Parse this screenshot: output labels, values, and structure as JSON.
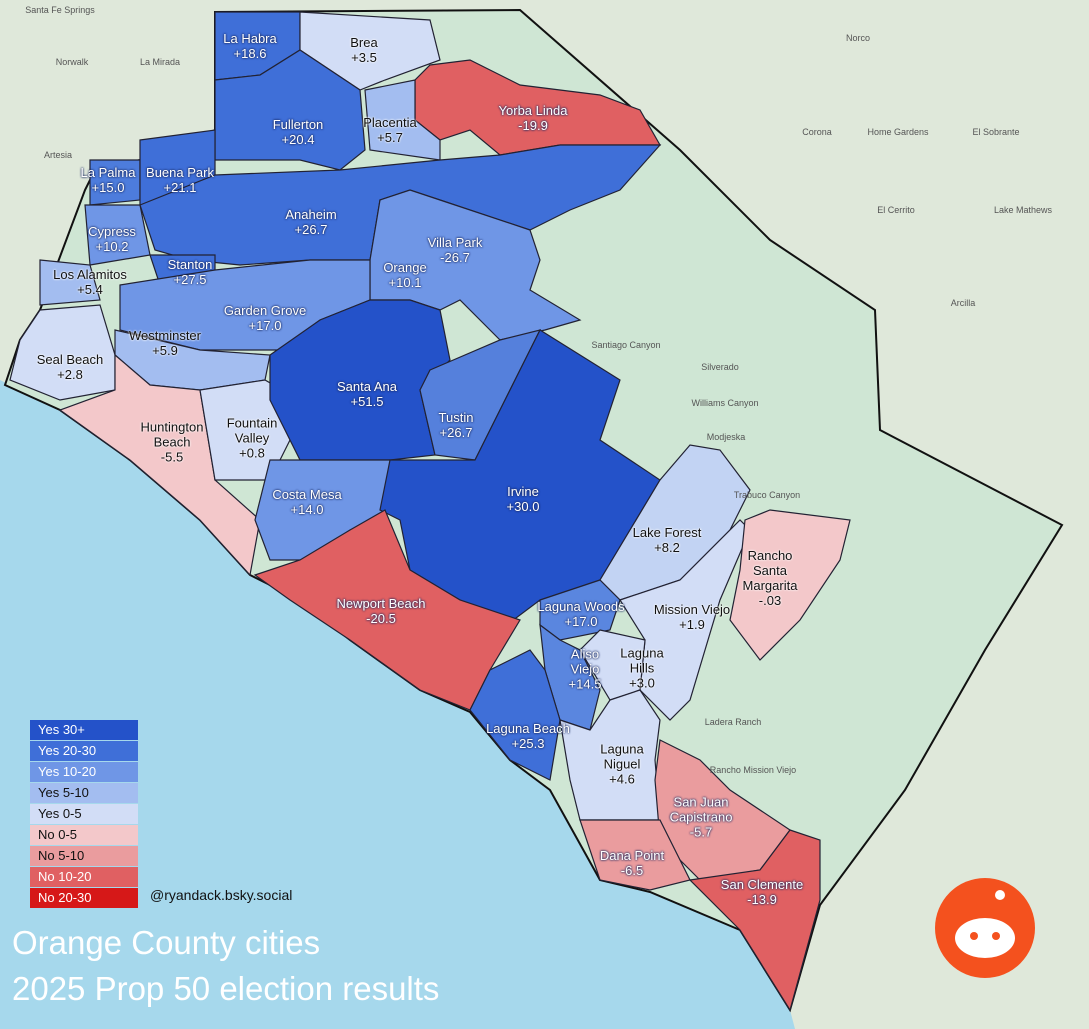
{
  "header": {
    "title_lines": [
      "Orange County cities",
      "2025 Prop 50 election results"
    ],
    "credit": "@ryandack.bsky.social"
  },
  "legend": [
    {
      "label": "Yes 30+",
      "color": "#2452c9"
    },
    {
      "label": "Yes 20-30",
      "color": "#3f6fd8"
    },
    {
      "label": "Yes 10-20",
      "color": "#6f96e6"
    },
    {
      "label": "Yes 5-10",
      "color": "#a3bdf0"
    },
    {
      "label": "Yes 0-5",
      "color": "#d2ddf6"
    },
    {
      "label": "No 0-5",
      "color": "#f3c8ca"
    },
    {
      "label": "No 5-10",
      "color": "#ea9c9e"
    },
    {
      "label": "No 10-20",
      "color": "#e06062"
    },
    {
      "label": "No 20-30",
      "color": "#d61818"
    }
  ],
  "cities": [
    {
      "name": "La Habra",
      "result": "+18.6",
      "color": "#3f6fd8"
    },
    {
      "name": "Brea",
      "result": "+3.5",
      "color": "#d2ddf6"
    },
    {
      "name": "Yorba Linda",
      "result": "-19.9",
      "color": "#e06062"
    },
    {
      "name": "Placentia",
      "result": "+5.7",
      "color": "#a3bdf0"
    },
    {
      "name": "Fullerton",
      "result": "+20.4",
      "color": "#3f6fd8"
    },
    {
      "name": "La Palma",
      "result": "+15.0",
      "color": "#4d7cdc"
    },
    {
      "name": "Buena Park",
      "result": "+21.1",
      "color": "#3f6fd8"
    },
    {
      "name": "Cypress",
      "result": "+10.2",
      "color": "#6f96e6"
    },
    {
      "name": "Anaheim",
      "result": "+26.7",
      "color": "#3f6fd8"
    },
    {
      "name": "Villa Park",
      "result": "-26.7",
      "color": "#d61818"
    },
    {
      "name": "Orange",
      "result": "+10.1",
      "color": "#6f96e6"
    },
    {
      "name": "Los Alamitos",
      "result": "+5.4",
      "color": "#a3bdf0"
    },
    {
      "name": "Stanton",
      "result": "+27.5",
      "color": "#3f6fd8"
    },
    {
      "name": "Garden Grove",
      "result": "+17.0",
      "color": "#6f96e6"
    },
    {
      "name": "Westminster",
      "result": "+5.9",
      "color": "#a3bdf0"
    },
    {
      "name": "Seal Beach",
      "result": "+2.8",
      "color": "#d2ddf6"
    },
    {
      "name": "Huntington Beach",
      "result": "-5.5",
      "color": "#f3c8ca"
    },
    {
      "name": "Fountain Valley",
      "result": "+0.8",
      "color": "#d2ddf6"
    },
    {
      "name": "Santa Ana",
      "result": "+51.5",
      "color": "#2452c9"
    },
    {
      "name": "Tustin",
      "result": "+26.7",
      "color": "#5580dc"
    },
    {
      "name": "Costa Mesa",
      "result": "+14.0",
      "color": "#6f96e6"
    },
    {
      "name": "Irvine",
      "result": "+30.0",
      "color": "#2452c9"
    },
    {
      "name": "Newport Beach",
      "result": "-20.5",
      "color": "#e06062"
    },
    {
      "name": "Lake Forest",
      "result": "+8.2",
      "color": "#c2d3f3"
    },
    {
      "name": "Mission Viejo",
      "result": "+1.9",
      "color": "#d2ddf6"
    },
    {
      "name": "Rancho Santa Margarita",
      "result": "-.03",
      "color": "#f3c8ca"
    },
    {
      "name": "Laguna Woods",
      "result": "+17.0",
      "color": "#5a86df"
    },
    {
      "name": "Aliso Viejo",
      "result": "+14.5",
      "color": "#5a86df"
    },
    {
      "name": "Laguna Hills",
      "result": "+3.0",
      "color": "#d2ddf6"
    },
    {
      "name": "Laguna Beach",
      "result": "+25.3",
      "color": "#3f6fd8"
    },
    {
      "name": "Laguna Niguel",
      "result": "+4.6",
      "color": "#d2ddf6"
    },
    {
      "name": "San Juan Capistrano",
      "result": "-5.7",
      "color": "#ea9c9e"
    },
    {
      "name": "Dana Point",
      "result": "-6.5",
      "color": "#ea9c9e"
    },
    {
      "name": "San Clemente",
      "result": "-13.9",
      "color": "#e06062"
    }
  ],
  "basemap_labels": [
    "Santa Fe Springs",
    "Norwalk",
    "La Mirada",
    "Artesia",
    "Norco",
    "Corona",
    "Home Gardens",
    "El Sobrante",
    "El Cerrito",
    "Arcilla",
    "Silverado",
    "Modjeska",
    "Williams Canyon",
    "Trabuco Canyon",
    "Ladera Ranch",
    "Rancho Mission Viejo",
    "Lake Mathews",
    "Santiago Canyon"
  ]
}
